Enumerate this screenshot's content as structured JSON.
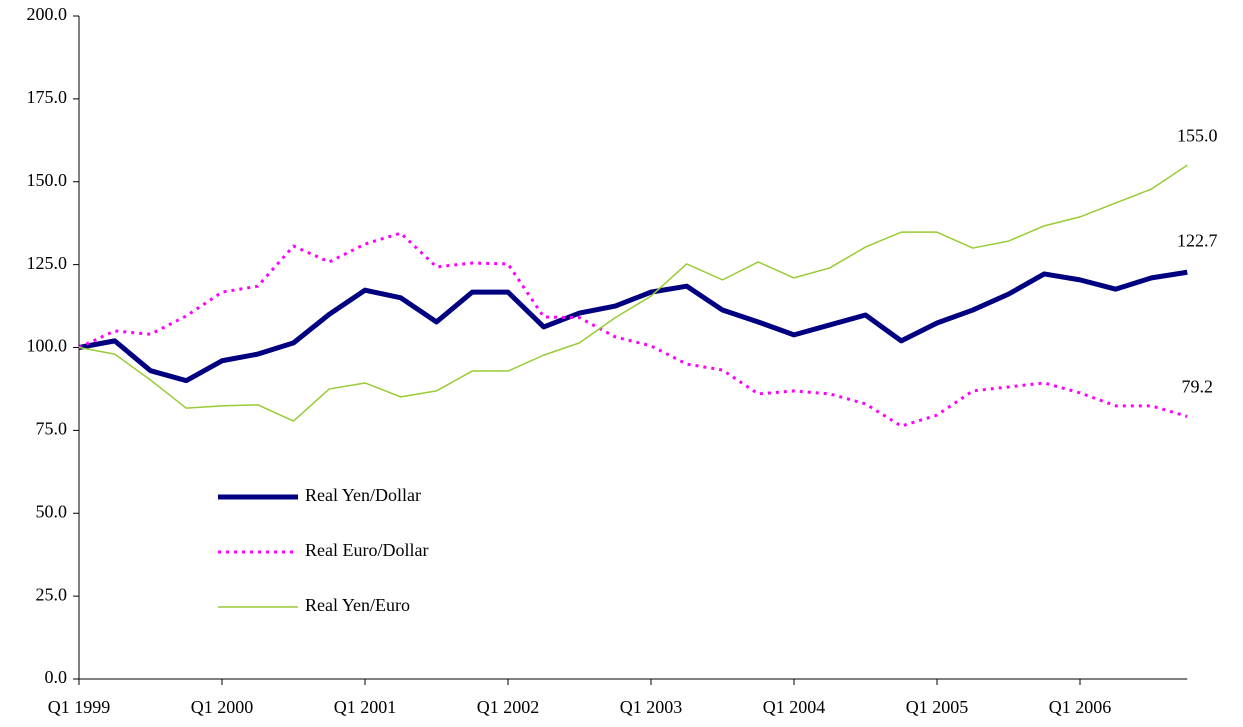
{
  "chart_data": {
    "type": "line",
    "categories": [
      "Q1 1999",
      null,
      null,
      null,
      "Q1 2000",
      null,
      null,
      null,
      "Q1 2001",
      null,
      null,
      null,
      "Q1 2002",
      null,
      null,
      null,
      "Q1 2003",
      null,
      null,
      null,
      "Q1 2004",
      null,
      null,
      null,
      "Q1 2005",
      null,
      null,
      null,
      "Q1 2006",
      null,
      null,
      null
    ],
    "series": [
      {
        "name": "Real Yen/Dollar",
        "color": "#000080",
        "style": "solid",
        "width": 5,
        "values": [
          100,
          102,
          93,
          90,
          96,
          98,
          101.4,
          110,
          117.3,
          115,
          107.7,
          116.7,
          116.7,
          106.2,
          110.4,
          112.5,
          116.7,
          118.5,
          111.3,
          107.7,
          103.8,
          106.8,
          109.8,
          102,
          107.4,
          111.3,
          116.1,
          122.2,
          120.4,
          117.6,
          121,
          122.7
        ],
        "value_labels": [
          null,
          null,
          null,
          null,
          null,
          null,
          null,
          null,
          null,
          null,
          null,
          null,
          null,
          null,
          null,
          null,
          null,
          null,
          null,
          null,
          null,
          null,
          null,
          null,
          null,
          null,
          null,
          null,
          null,
          null,
          null,
          "122.7"
        ]
      },
      {
        "name": "Real Euro/Dollar",
        "color": "#ff00ff",
        "style": "dotted",
        "width": 3,
        "values": [
          100,
          105,
          104,
          109.5,
          116.7,
          118.5,
          130.6,
          125.8,
          131.2,
          134.5,
          124.3,
          125.5,
          125.2,
          109.2,
          109,
          103.2,
          100.5,
          95,
          93.2,
          86,
          86.9,
          86,
          83,
          76.3,
          79.6,
          86.9,
          88.1,
          89.3,
          86.3,
          82.4,
          82.4,
          79.2
        ],
        "value_labels": [
          null,
          null,
          null,
          null,
          null,
          null,
          null,
          null,
          null,
          null,
          null,
          null,
          null,
          null,
          null,
          null,
          null,
          null,
          null,
          null,
          null,
          null,
          null,
          null,
          null,
          null,
          null,
          null,
          null,
          null,
          null,
          "79.2"
        ]
      },
      {
        "name": "Real Yen/Euro",
        "color": "#99cc33",
        "style": "solid",
        "width": 1.5,
        "values": [
          100,
          98,
          90.2,
          81.7,
          82.4,
          82.7,
          77.8,
          87.5,
          89.3,
          85.1,
          86.9,
          92.9,
          92.9,
          97.7,
          101.4,
          109,
          115.5,
          125.2,
          120.4,
          125.8,
          121,
          124,
          130.3,
          134.8,
          134.8,
          130,
          132.1,
          136.7,
          139.4,
          143.6,
          147.8,
          155
        ],
        "value_labels": [
          null,
          null,
          null,
          null,
          null,
          null,
          null,
          null,
          null,
          null,
          null,
          null,
          null,
          null,
          null,
          null,
          null,
          null,
          null,
          null,
          null,
          null,
          null,
          null,
          null,
          null,
          null,
          null,
          null,
          null,
          null,
          "155.0"
        ]
      }
    ],
    "ylim": [
      0,
      200
    ],
    "yticks": [
      {
        "value": 0,
        "label": "0.0"
      },
      {
        "value": 25,
        "label": "25.0"
      },
      {
        "value": 50,
        "label": "50.0"
      },
      {
        "value": 75,
        "label": "75.0"
      },
      {
        "value": 100,
        "label": "100.0"
      },
      {
        "value": 125,
        "label": "125.0"
      },
      {
        "value": 150,
        "label": "150.0"
      },
      {
        "value": 175,
        "label": "175.0"
      },
      {
        "value": 200,
        "label": "200.0"
      }
    ],
    "grid": false,
    "legend": "lower-left"
  }
}
